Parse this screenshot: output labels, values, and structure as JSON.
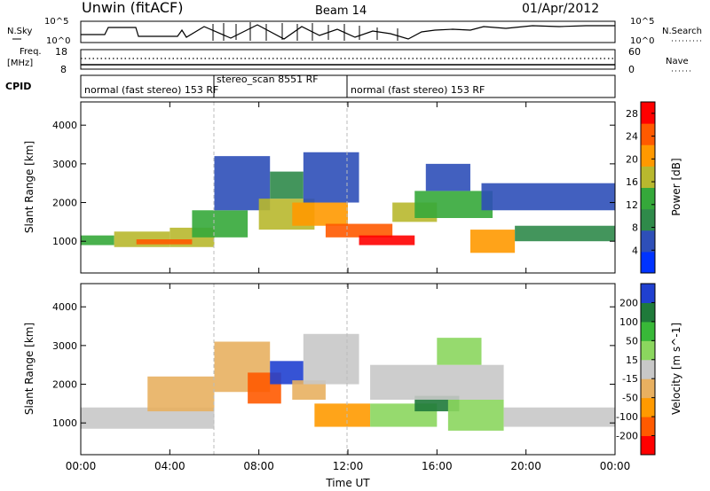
{
  "header": {
    "station": "Unwin (fitACF)",
    "beam": "Beam 14",
    "date": "01/Apr/2012"
  },
  "noise_panel": {
    "left_label": "N.Sky",
    "right_label": "N.Search",
    "left_ticks": [
      "10^5",
      "10^0"
    ],
    "right_ticks": [
      "10^5",
      "10^0"
    ]
  },
  "freq_panel": {
    "left_label_1": "Freq.",
    "left_label_2": "[MHz]",
    "right_label": "Nave",
    "left_ticks": [
      "18",
      "8"
    ],
    "right_ticks": [
      "60",
      "0"
    ]
  },
  "cpid": {
    "label": "CPID",
    "modes": [
      "normal (fast stereo) 153 RF",
      "stereo_scan 8551 RF",
      "normal (fast stereo) 153 RF"
    ],
    "mode_boundaries_hours": [
      6.0,
      12.0
    ]
  },
  "colors": {
    "power_scale": [
      "#0033ff",
      "#2e4fb8",
      "#2f8a4a",
      "#35a83a",
      "#b8b82e",
      "#ff9900",
      "#ff5a00",
      "#ff0000"
    ],
    "velocity_scale": [
      "#ff0000",
      "#ff5a00",
      "#ff9a00",
      "#e8b060",
      "#c8c8c8",
      "#8bd65e",
      "#38b838",
      "#1f7a3a",
      "#2040d0"
    ]
  },
  "chart_data": [
    {
      "type": "heatmap",
      "title": "",
      "xlabel": "",
      "ylabel": "Slant Range [km]",
      "xlim": [
        0,
        24
      ],
      "ylim": [
        180,
        4600
      ],
      "yticks": [
        "1000",
        "2000",
        "3000",
        "4000"
      ],
      "colorbar": {
        "label": "Power [dB]",
        "ticks": [
          "4",
          "8",
          "12",
          "16",
          "20",
          "24",
          "28"
        ],
        "range": [
          0,
          30
        ]
      },
      "cells": [
        {
          "t": [
            0.0,
            1.5
          ],
          "r": [
            900,
            1150
          ],
          "v": 12
        },
        {
          "t": [
            1.5,
            4.0
          ],
          "r": [
            850,
            1250
          ],
          "v": 15
        },
        {
          "t": [
            4.0,
            6.0
          ],
          "r": [
            850,
            1350
          ],
          "v": 17
        },
        {
          "t": [
            2.5,
            5.0
          ],
          "r": [
            920,
            1050
          ],
          "v": 25
        },
        {
          "t": [
            5.0,
            7.5
          ],
          "r": [
            1100,
            1800
          ],
          "v": 14
        },
        {
          "t": [
            6.0,
            8.5
          ],
          "r": [
            1800,
            3200
          ],
          "v": 6
        },
        {
          "t": [
            8.0,
            10.5
          ],
          "r": [
            1300,
            2100
          ],
          "v": 18
        },
        {
          "t": [
            8.5,
            10.0
          ],
          "r": [
            2100,
            2800
          ],
          "v": 10
        },
        {
          "t": [
            9.5,
            12.0
          ],
          "r": [
            1400,
            2000
          ],
          "v": 20
        },
        {
          "t": [
            10.0,
            12.5
          ],
          "r": [
            2000,
            3300
          ],
          "v": 5
        },
        {
          "t": [
            11.0,
            14.0
          ],
          "r": [
            1100,
            1450
          ],
          "v": 26
        },
        {
          "t": [
            12.5,
            15.0
          ],
          "r": [
            900,
            1150
          ],
          "v": 28
        },
        {
          "t": [
            14.0,
            16.0
          ],
          "r": [
            1500,
            2000
          ],
          "v": 17
        },
        {
          "t": [
            15.0,
            18.5
          ],
          "r": [
            1600,
            2300
          ],
          "v": 12
        },
        {
          "t": [
            15.5,
            17.5
          ],
          "r": [
            2300,
            3000
          ],
          "v": 6
        },
        {
          "t": [
            17.5,
            19.5
          ],
          "r": [
            700,
            1300
          ],
          "v": 22
        },
        {
          "t": [
            19.5,
            24.0
          ],
          "r": [
            1000,
            1400
          ],
          "v": 11
        },
        {
          "t": [
            18.0,
            24.0
          ],
          "r": [
            1800,
            2500
          ],
          "v": 4
        }
      ]
    },
    {
      "type": "heatmap",
      "title": "",
      "xlabel": "Time UT",
      "ylabel": "Slant Range [km]",
      "xlim": [
        0,
        24
      ],
      "ylim": [
        180,
        4600
      ],
      "xticks": [
        "00:00",
        "04:00",
        "08:00",
        "12:00",
        "16:00",
        "20:00",
        "00:00"
      ],
      "yticks": [
        "1000",
        "2000",
        "3000",
        "4000"
      ],
      "colorbar": {
        "label": "Velocity [m s^-1]",
        "ticks": [
          "-200",
          "-100",
          "-50",
          "-15",
          "15",
          "50",
          "100",
          "200"
        ],
        "range": [
          -250,
          250
        ]
      },
      "cells": [
        {
          "t": [
            0.0,
            6.0
          ],
          "r": [
            850,
            1400
          ],
          "v": 0
        },
        {
          "t": [
            3.0,
            6.0
          ],
          "r": [
            1300,
            2200
          ],
          "v": -30
        },
        {
          "t": [
            6.0,
            8.5
          ],
          "r": [
            1800,
            3100
          ],
          "v": -40
        },
        {
          "t": [
            7.5,
            9.0
          ],
          "r": [
            1500,
            2300
          ],
          "v": -150
        },
        {
          "t": [
            8.5,
            10.0
          ],
          "r": [
            2000,
            2600
          ],
          "v": 220
        },
        {
          "t": [
            9.5,
            11.0
          ],
          "r": [
            1600,
            2100
          ],
          "v": -80
        },
        {
          "t": [
            10.0,
            12.5
          ],
          "r": [
            2000,
            3300
          ],
          "v": 0
        },
        {
          "t": [
            10.5,
            13.0
          ],
          "r": [
            900,
            1500
          ],
          "v": -90
        },
        {
          "t": [
            13.0,
            16.0
          ],
          "r": [
            900,
            1500
          ],
          "v": 80
        },
        {
          "t": [
            15.0,
            17.0
          ],
          "r": [
            1300,
            1700
          ],
          "v": 180
        },
        {
          "t": [
            16.5,
            19.0
          ],
          "r": [
            800,
            1600
          ],
          "v": 60
        },
        {
          "t": [
            13.0,
            19.0
          ],
          "r": [
            1600,
            2500
          ],
          "v": 0
        },
        {
          "t": [
            19.0,
            24.0
          ],
          "r": [
            900,
            1400
          ],
          "v": 0
        },
        {
          "t": [
            16.0,
            18.0
          ],
          "r": [
            2500,
            3200
          ],
          "v": 40
        }
      ]
    }
  ]
}
